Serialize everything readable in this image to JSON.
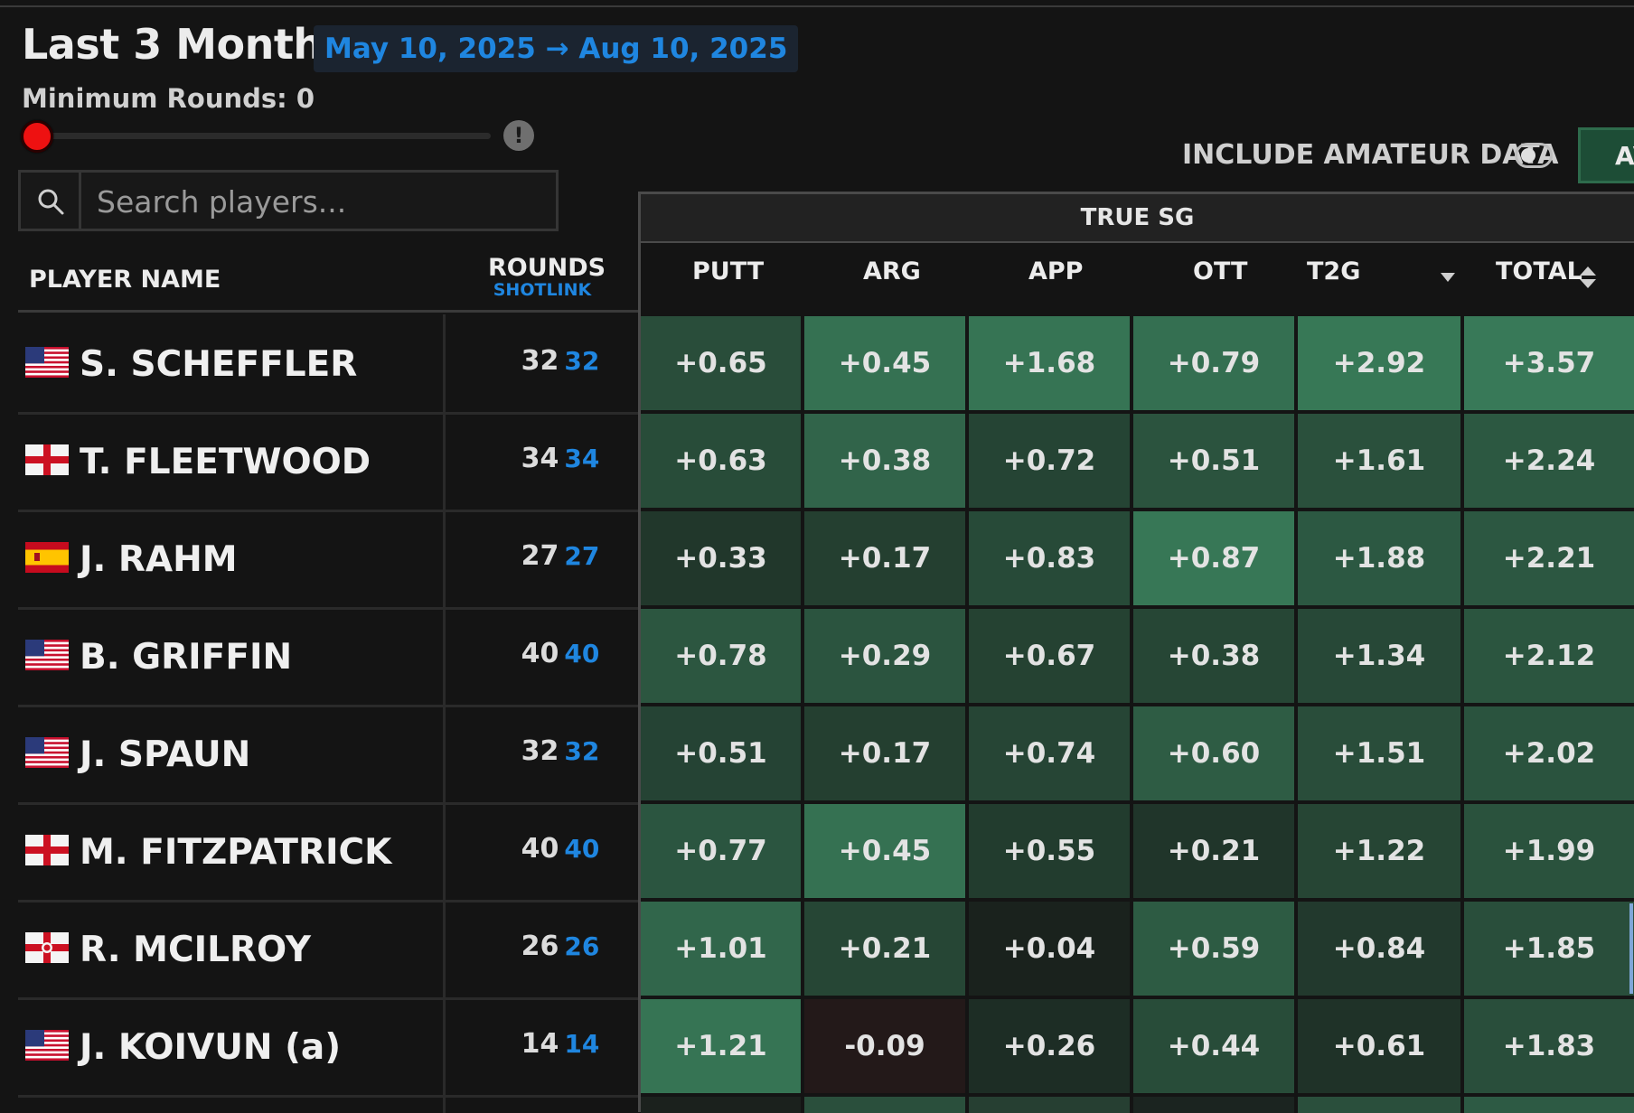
{
  "header": {
    "title": "Last 3 Months",
    "date_range": "May 10, 2025 → Aug 10, 2025",
    "min_rounds_label": "Minimum Rounds: 0",
    "min_rounds_value": 0
  },
  "search": {
    "placeholder": "Search players..."
  },
  "controls": {
    "include_amateur_label": "INCLUDE AMATEUR DATA",
    "include_amateur_on": false,
    "avg_button_label": "AV"
  },
  "table": {
    "group_header": "TRUE SG",
    "columns": {
      "player": "PLAYER NAME",
      "rounds": "ROUNDS",
      "rounds_sub": "SHOTLINK",
      "putt": "PUTT",
      "arg": "ARG",
      "app": "APP",
      "ott": "OTT",
      "t2g": "T2G",
      "total": "TOTAL"
    },
    "rows": [
      {
        "name": "S. SCHEFFLER",
        "flag": "usa",
        "rounds": "32",
        "shotlink": "32",
        "putt": "+0.65",
        "arg": "+0.45",
        "app": "+1.68",
        "ott": "+0.79",
        "t2g": "+2.92",
        "total": "+3.57"
      },
      {
        "name": "T. FLEETWOOD",
        "flag": "england",
        "rounds": "34",
        "shotlink": "34",
        "putt": "+0.63",
        "arg": "+0.38",
        "app": "+0.72",
        "ott": "+0.51",
        "t2g": "+1.61",
        "total": "+2.24"
      },
      {
        "name": "J. RAHM",
        "flag": "spain",
        "rounds": "27",
        "shotlink": "27",
        "putt": "+0.33",
        "arg": "+0.17",
        "app": "+0.83",
        "ott": "+0.87",
        "t2g": "+1.88",
        "total": "+2.21"
      },
      {
        "name": "B. GRIFFIN",
        "flag": "usa",
        "rounds": "40",
        "shotlink": "40",
        "putt": "+0.78",
        "arg": "+0.29",
        "app": "+0.67",
        "ott": "+0.38",
        "t2g": "+1.34",
        "total": "+2.12"
      },
      {
        "name": "J. SPAUN",
        "flag": "usa",
        "rounds": "32",
        "shotlink": "32",
        "putt": "+0.51",
        "arg": "+0.17",
        "app": "+0.74",
        "ott": "+0.60",
        "t2g": "+1.51",
        "total": "+2.02"
      },
      {
        "name": "M. FITZPATRICK",
        "flag": "england",
        "rounds": "40",
        "shotlink": "40",
        "putt": "+0.77",
        "arg": "+0.45",
        "app": "+0.55",
        "ott": "+0.21",
        "t2g": "+1.22",
        "total": "+1.99"
      },
      {
        "name": "R. MCILROY",
        "flag": "northern-ireland",
        "rounds": "26",
        "shotlink": "26",
        "putt": "+1.01",
        "arg": "+0.21",
        "app": "+0.04",
        "ott": "+0.59",
        "t2g": "+0.84",
        "total": "+1.85"
      },
      {
        "name": "J. KOIVUN  (a)",
        "flag": "usa",
        "rounds": "14",
        "shotlink": "14",
        "putt": "+1.21",
        "arg": "-0.09",
        "app": "+0.26",
        "ott": "+0.44",
        "t2g": "+0.61",
        "total": "+1.83"
      }
    ]
  },
  "colors": {
    "background": "#141414",
    "link_blue": "#1f86e0",
    "slider_thumb": "#ee1111",
    "positive_strong": "#3a7a58",
    "negative": "#2a1a1a"
  }
}
